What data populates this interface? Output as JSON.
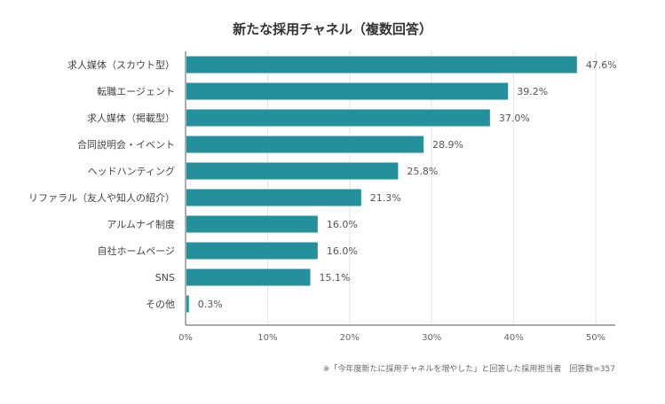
{
  "chart_data": {
    "type": "bar",
    "orientation": "horizontal",
    "title": "新たな採用チャネル（複数回答）",
    "categories": [
      "求人媒体（スカウト型）",
      "転職エージェント",
      "求人媒体（掲載型）",
      "合同説明会・イベント",
      "ヘッドハンティング",
      "リファラル（友人や知人の紹介）",
      "アルムナイ制度",
      "自社ホームページ",
      "SNS",
      "その他"
    ],
    "values": [
      47.6,
      39.2,
      37.0,
      28.9,
      25.8,
      21.3,
      16.0,
      16.0,
      15.1,
      0.3
    ],
    "value_labels": [
      "47.6%",
      "39.2%",
      "37.0%",
      "28.9%",
      "25.8%",
      "21.3%",
      "16.0%",
      "16.0%",
      "15.1%",
      "0.3%"
    ],
    "xlim": [
      0,
      50
    ],
    "xticks": [
      0,
      10,
      20,
      30,
      40,
      50
    ],
    "xtick_labels": [
      "0%",
      "10%",
      "20%",
      "30%",
      "40%",
      "50%"
    ],
    "grid": "vertical",
    "bar_color": "#23909b",
    "footnote": "※「今年度新たに採用チャネルを増やした」と回答した採用担当者　回答数=357"
  }
}
